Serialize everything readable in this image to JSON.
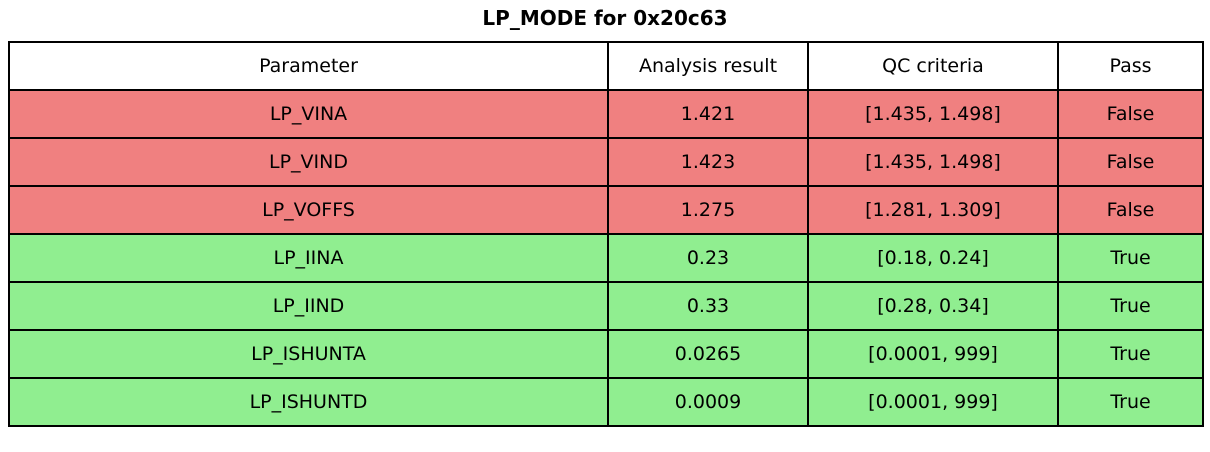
{
  "title": "LP_MODE for 0x20c63",
  "colors": {
    "fail_row_bg": "#f08080",
    "pass_row_bg": "#90ee90",
    "header_bg": "#ffffff",
    "border": "#000000",
    "text": "#000000"
  },
  "table": {
    "headers": [
      "Parameter",
      "Analysis result",
      "QC criteria",
      "Pass"
    ],
    "rows": [
      {
        "parameter": "LP_VINA",
        "result": "1.421",
        "qc": "[1.435, 1.498]",
        "pass": "False"
      },
      {
        "parameter": "LP_VIND",
        "result": "1.423",
        "qc": "[1.435, 1.498]",
        "pass": "False"
      },
      {
        "parameter": "LP_VOFFS",
        "result": "1.275",
        "qc": "[1.281, 1.309]",
        "pass": "False"
      },
      {
        "parameter": "LP_IINA",
        "result": "0.23",
        "qc": "[0.18, 0.24]",
        "pass": "True"
      },
      {
        "parameter": "LP_IIND",
        "result": "0.33",
        "qc": "[0.28, 0.34]",
        "pass": "True"
      },
      {
        "parameter": "LP_ISHUNTA",
        "result": "0.0265",
        "qc": "[0.0001, 999]",
        "pass": "True"
      },
      {
        "parameter": "LP_ISHUNTD",
        "result": "0.0009",
        "qc": "[0.0001, 999]",
        "pass": "True"
      }
    ]
  }
}
